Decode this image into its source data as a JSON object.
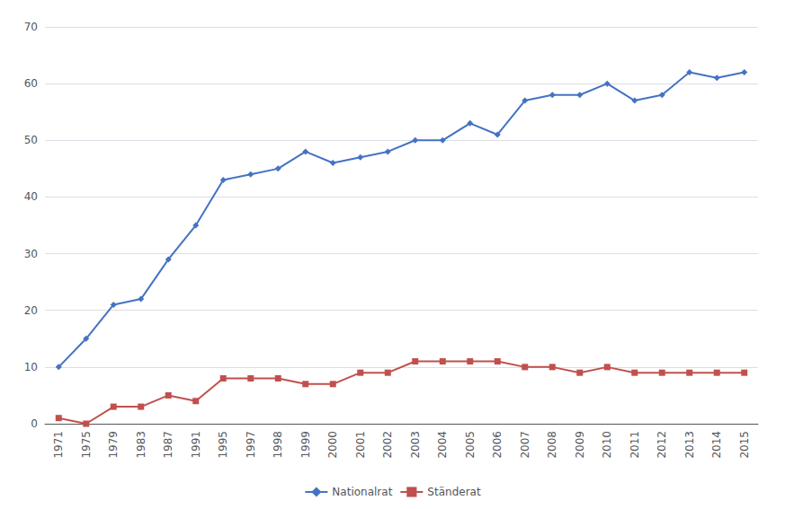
{
  "chart_data": {
    "type": "line",
    "categories": [
      "1971",
      "1975",
      "1979",
      "1983",
      "1987",
      "1991",
      "1995",
      "1997",
      "1998",
      "1999",
      "2000",
      "2001",
      "2002",
      "2003",
      "2004",
      "2005",
      "2006",
      "2007",
      "2008",
      "2009",
      "2010",
      "2011",
      "2012",
      "2013",
      "2014",
      "2015"
    ],
    "series": [
      {
        "name": "Nationalrat",
        "color": "#4472C4",
        "marker": "diamond",
        "values": [
          10,
          15,
          21,
          22,
          29,
          35,
          43,
          44,
          45,
          48,
          46,
          47,
          48,
          50,
          50,
          53,
          51,
          57,
          58,
          58,
          60,
          57,
          58,
          62,
          61,
          62
        ]
      },
      {
        "name": "Ständerat",
        "color": "#C0504D",
        "marker": "square",
        "values": [
          1,
          0,
          3,
          3,
          5,
          4,
          8,
          8,
          8,
          7,
          7,
          9,
          9,
          11,
          11,
          11,
          11,
          10,
          10,
          9,
          10,
          9,
          9,
          9,
          9,
          9
        ]
      }
    ],
    "ylim": [
      0,
      70
    ],
    "yticks": [
      0,
      10,
      20,
      30,
      40,
      50,
      60,
      70
    ],
    "grid": true,
    "legend": "bottom"
  }
}
